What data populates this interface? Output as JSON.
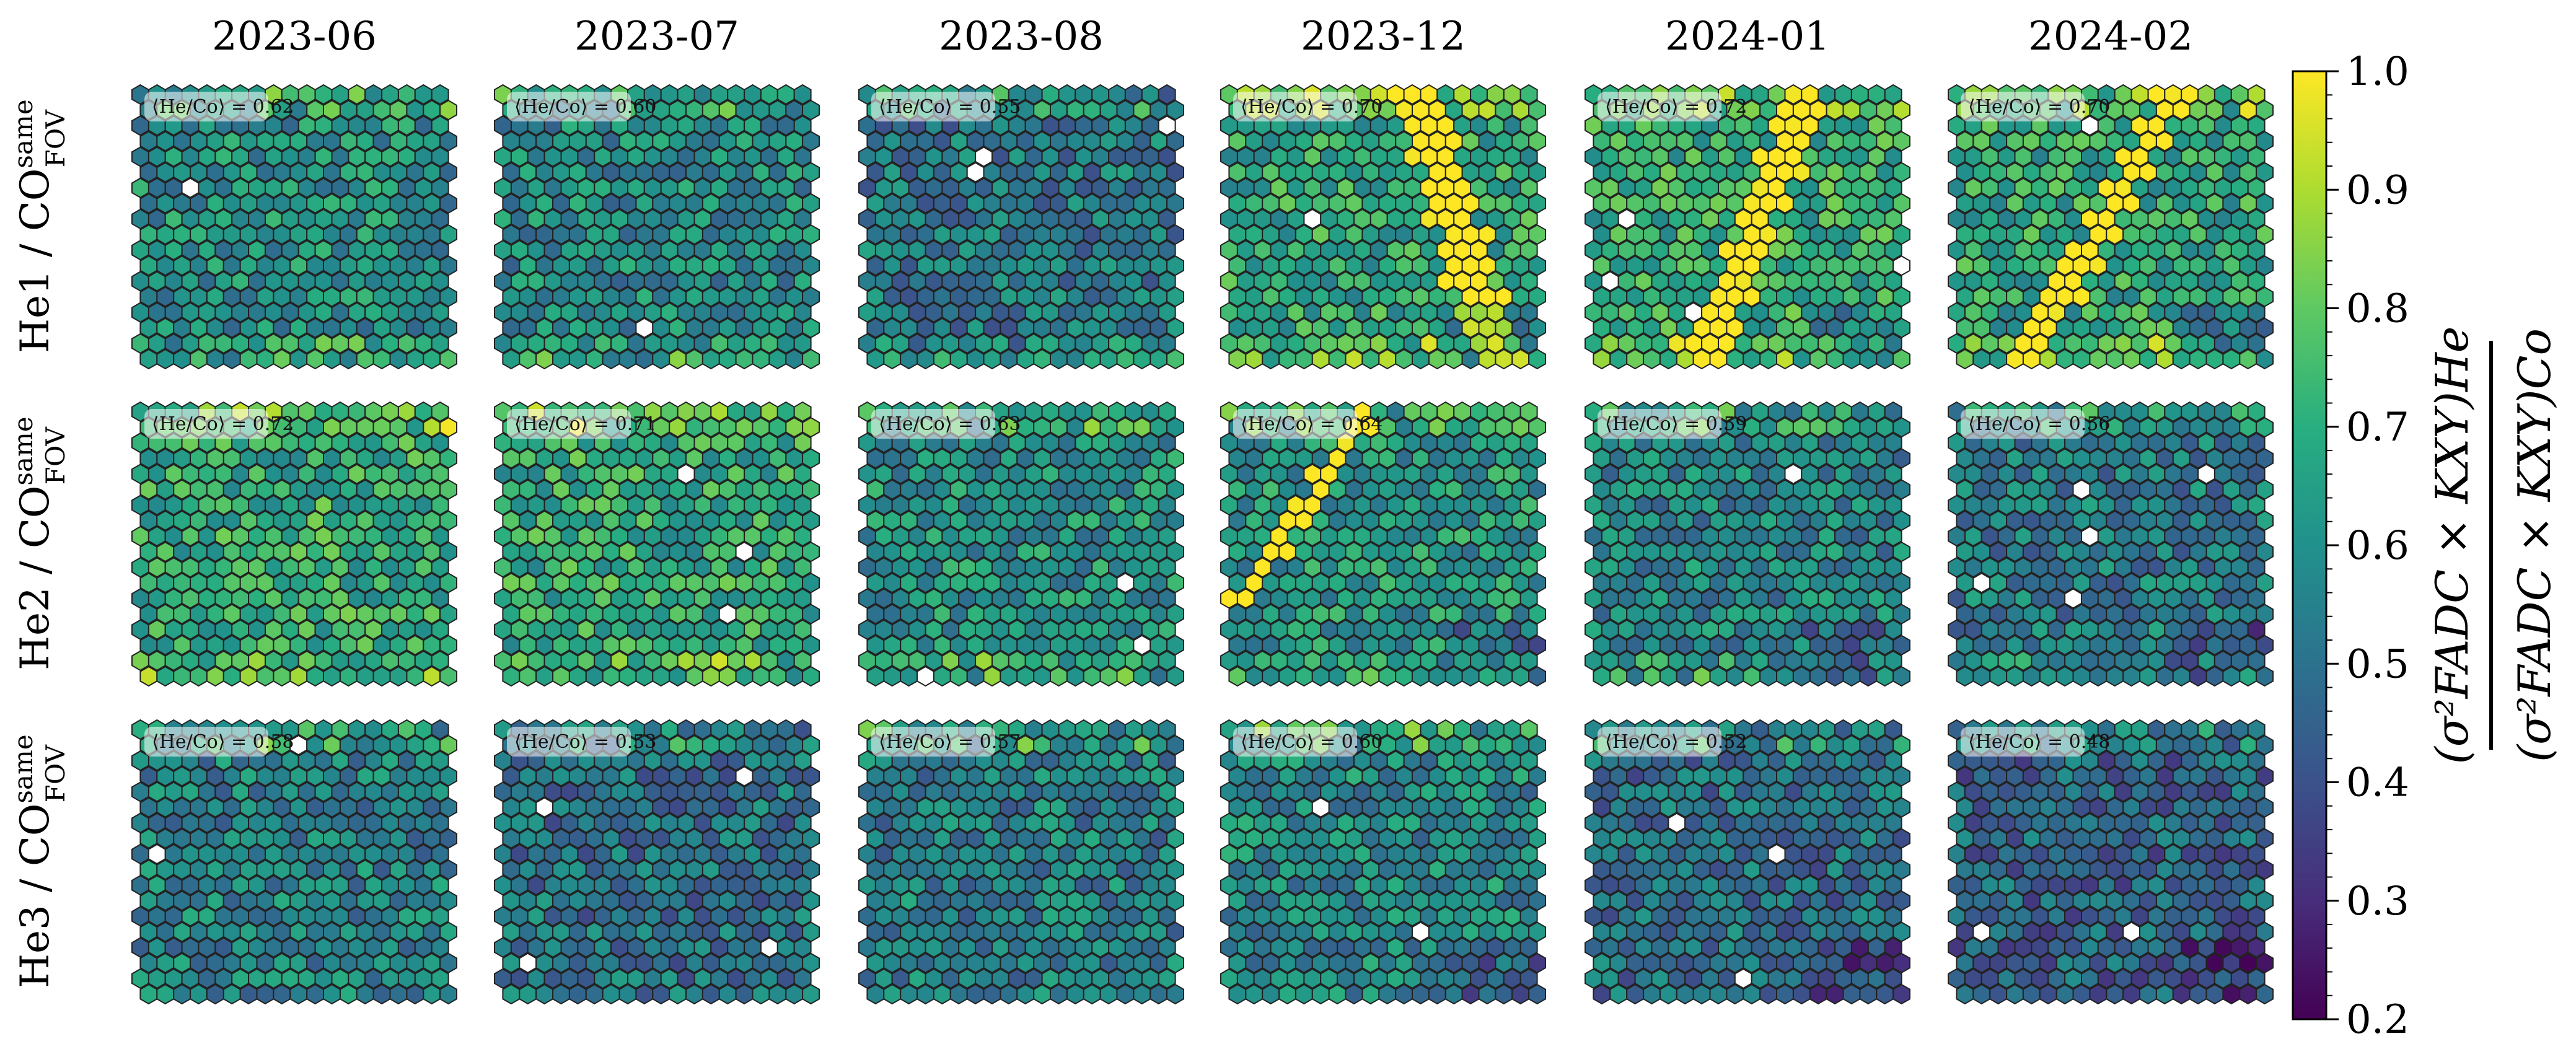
{
  "chart_data": {
    "type": "heatmap",
    "layout": "grid of hexagonal pixel-camera maps, 3 rows x 6 columns",
    "grid": "on-hex",
    "columns": [
      "2023-06",
      "2023-07",
      "2023-08",
      "2023-12",
      "2024-01",
      "2024-02"
    ],
    "rows": [
      {
        "label_main": "He1 / CO",
        "label_sup": "same",
        "label_sub": "FOV"
      },
      {
        "label_main": "He2 / CO",
        "label_sup": "same",
        "label_sub": "FOV"
      },
      {
        "label_main": "He3 / CO",
        "label_sup": "same",
        "label_sub": "FOV"
      }
    ],
    "panel_mean_prefix": "⟨He/Co⟩ = ",
    "panel_means": [
      [
        "0.62",
        "0.60",
        "0.55",
        "0.70",
        "0.72",
        "0.70"
      ],
      [
        "0.72",
        "0.71",
        "0.63",
        "0.64",
        "0.59",
        "0.56"
      ],
      [
        "0.58",
        "0.53",
        "0.57",
        "0.60",
        "0.52",
        "0.48"
      ]
    ],
    "colorbar": {
      "colormap": "viridis",
      "range": [
        0.2,
        1.0
      ],
      "ticks": [
        "1.0",
        "0.9",
        "0.8",
        "0.7",
        "0.6",
        "0.5",
        "0.4",
        "0.3",
        "0.2"
      ],
      "label": "(σ²FADC × KXY)He / (σ²FADC × KXY)Co",
      "label_numerator": "(σ²FADC × KXY)He",
      "label_denominator": "(σ²FADC × KXY)Co"
    },
    "colors": {
      "saturated": "#fde725",
      "missing": "#ffffff",
      "edge": "#222222"
    }
  }
}
